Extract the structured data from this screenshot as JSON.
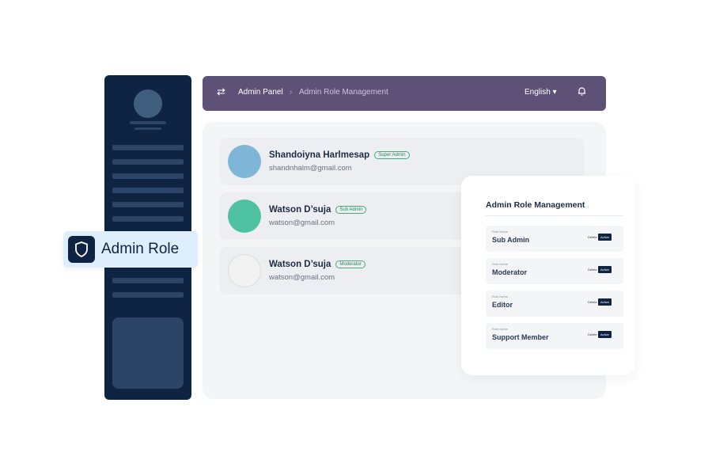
{
  "sidebar": {
    "active_item": "Admin Role",
    "icon": "shield-icon"
  },
  "topbar": {
    "breadcrumb": [
      "Admin Panel",
      "Admin Role Management"
    ],
    "language": "English",
    "icons": [
      "swap-icon",
      "bell-icon"
    ]
  },
  "users": [
    {
      "name": "Shandoiyna Harlmesap",
      "role": "Super Admin",
      "email": "shandnhalm@gmail.com",
      "avatar_color": "#7fb6d8"
    },
    {
      "name": "Watson D’suja",
      "role": "Sub Admin",
      "email": "watson@gmail.com",
      "avatar_color": "#4fc3a1"
    },
    {
      "name": "Watson D’suja",
      "role": "Moderator",
      "email": "watson@gmail.com",
      "avatar_color": "#f2f2f2"
    }
  ],
  "panel": {
    "title": "Admin Role Management",
    "label": "Role Name",
    "delete": "Delete",
    "active": "Active",
    "roles": [
      "Sub Admin",
      "Moderator",
      "Editor",
      "Support Member"
    ]
  },
  "colors": {
    "sidebar": "#0f2443",
    "topbar": "#5d5178",
    "badge": "#2a8a5a"
  }
}
